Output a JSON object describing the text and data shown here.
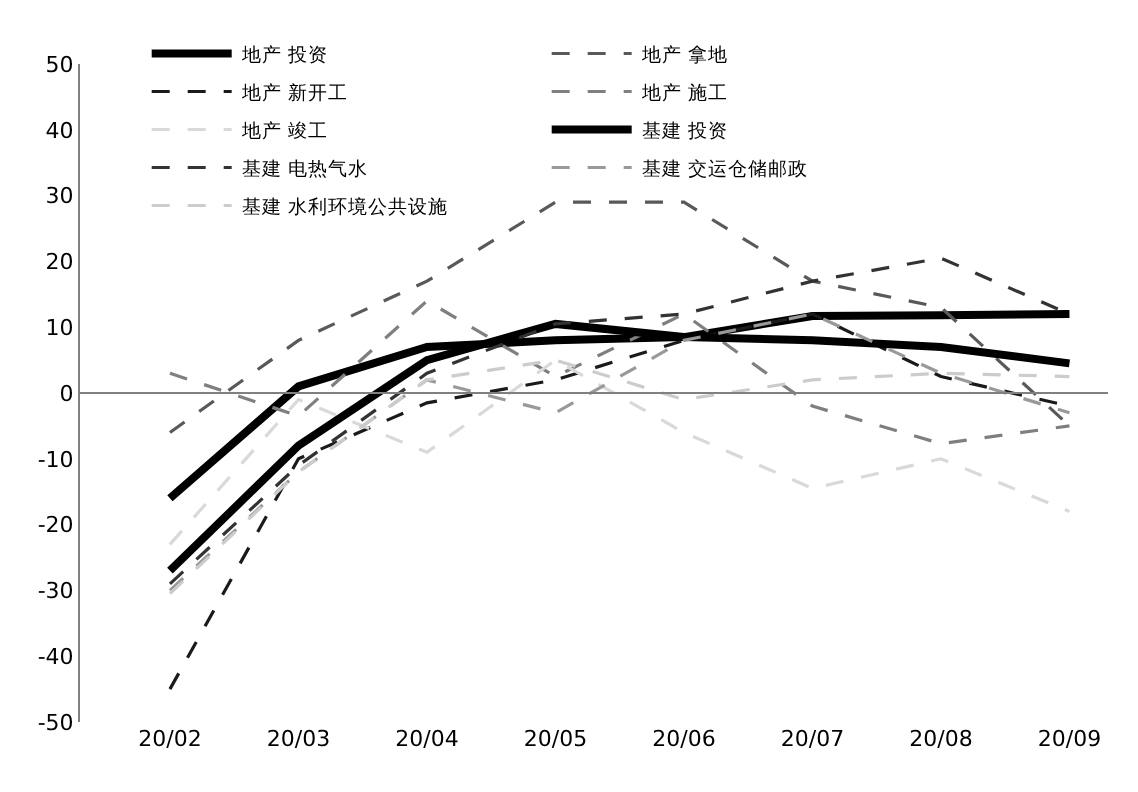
{
  "chart_data": {
    "type": "line",
    "categories": [
      "20/02",
      "20/03",
      "20/04",
      "20/05",
      "20/06",
      "20/07",
      "20/08",
      "20/09"
    ],
    "series": [
      {
        "name": "地产 投资",
        "color": "#000000",
        "line_style": "solid",
        "values": [
          -16,
          1,
          7,
          8,
          8.5,
          11.7,
          11.8,
          12
        ]
      },
      {
        "name": "地产 拿地",
        "color": "#595959",
        "line_style": "dashed",
        "values": [
          -6,
          8,
          17,
          29,
          29,
          17,
          13,
          -5
        ]
      },
      {
        "name": "地产 新开工",
        "color": "#1a1a1a",
        "line_style": "dashed",
        "values": [
          -45,
          -10,
          -1.5,
          2,
          8,
          12,
          2.5,
          -2
        ]
      },
      {
        "name": "地产 施工",
        "color": "#7f7f7f",
        "line_style": "dashed",
        "values": [
          3,
          -3.5,
          14,
          2.5,
          12,
          -2,
          -7.7,
          -5
        ]
      },
      {
        "name": "地产 竣工",
        "color": "#d9d9d9",
        "line_style": "dashed",
        "values": [
          -23,
          -1,
          -9,
          5,
          -6,
          -14.5,
          -10,
          -18
        ]
      },
      {
        "name": "基建 投资",
        "color": "#000000",
        "line_style": "solid",
        "values": [
          -27,
          -8,
          5,
          10.5,
          8.5,
          8,
          7,
          4.5
        ]
      },
      {
        "name": "基建 电热气水",
        "color": "#333333",
        "line_style": "dashed",
        "values": [
          -29,
          -11,
          3,
          10.5,
          12,
          17,
          20.5,
          12
        ]
      },
      {
        "name": "基建 交运仓储邮政",
        "color": "#999999",
        "line_style": "dashed",
        "values": [
          -30,
          -12,
          2,
          -3,
          8,
          12,
          3,
          -3
        ]
      },
      {
        "name": "基建 水利环境公共设施",
        "color": "#cccccc",
        "line_style": "dashed",
        "values": [
          -30.5,
          -12,
          2,
          5,
          -1,
          2,
          3,
          2.5
        ]
      }
    ],
    "ylim": [
      -50,
      50
    ],
    "yticks": [
      -50,
      -40,
      -30,
      -20,
      -10,
      0,
      10,
      20,
      30,
      40,
      50
    ],
    "ref_lines": [
      {
        "axis": "y",
        "value": 0,
        "color": "#808080"
      }
    ],
    "legend": "top",
    "marker": "none"
  }
}
